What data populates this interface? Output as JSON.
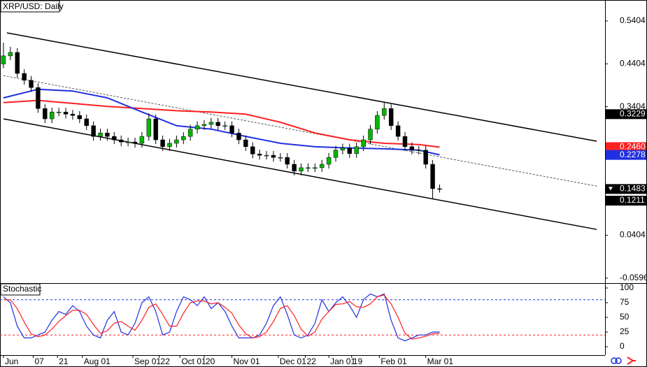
{
  "chart_data": [
    {
      "type": "candlestick",
      "title": "XRP/USD: Daily",
      "open": [
        0.44,
        0.459,
        0.467,
        0.418,
        0.402,
        0.385,
        0.336,
        0.312,
        0.328,
        0.328,
        0.323,
        0.32,
        0.312,
        0.296,
        0.271,
        0.279,
        0.271,
        0.263,
        0.258,
        0.258,
        0.255,
        0.271,
        0.312,
        0.263,
        0.247,
        0.255,
        0.263,
        0.271,
        0.288,
        0.296,
        0.299,
        0.304,
        0.296,
        0.296,
        0.279,
        0.263,
        0.247,
        0.23,
        0.227,
        0.227,
        0.222,
        0.222,
        0.206,
        0.19,
        0.198,
        0.198,
        0.198,
        0.206,
        0.222,
        0.239,
        0.244,
        0.231,
        0.247,
        0.263,
        0.288,
        0.32,
        0.336,
        0.296,
        0.271,
        0.247,
        0.239,
        0.239,
        0.206,
        0.149
      ],
      "high": [
        0.49,
        0.48,
        0.477,
        0.428,
        0.412,
        0.395,
        0.346,
        0.338,
        0.338,
        0.338,
        0.333,
        0.33,
        0.322,
        0.306,
        0.289,
        0.289,
        0.281,
        0.273,
        0.268,
        0.268,
        0.281,
        0.325,
        0.322,
        0.273,
        0.265,
        0.273,
        0.281,
        0.298,
        0.306,
        0.309,
        0.314,
        0.314,
        0.306,
        0.306,
        0.289,
        0.273,
        0.257,
        0.24,
        0.237,
        0.237,
        0.232,
        0.232,
        0.216,
        0.208,
        0.208,
        0.208,
        0.216,
        0.232,
        0.249,
        0.254,
        0.254,
        0.257,
        0.273,
        0.298,
        0.33,
        0.35,
        0.346,
        0.306,
        0.281,
        0.257,
        0.249,
        0.249,
        0.216,
        0.159
      ],
      "low": [
        0.43,
        0.449,
        0.408,
        0.392,
        0.375,
        0.326,
        0.302,
        0.302,
        0.318,
        0.313,
        0.31,
        0.302,
        0.286,
        0.261,
        0.261,
        0.261,
        0.253,
        0.248,
        0.248,
        0.245,
        0.245,
        0.261,
        0.253,
        0.237,
        0.237,
        0.245,
        0.253,
        0.261,
        0.278,
        0.286,
        0.289,
        0.286,
        0.286,
        0.269,
        0.253,
        0.237,
        0.22,
        0.217,
        0.217,
        0.212,
        0.212,
        0.196,
        0.18,
        0.18,
        0.188,
        0.188,
        0.188,
        0.196,
        0.212,
        0.229,
        0.221,
        0.221,
        0.237,
        0.253,
        0.278,
        0.31,
        0.286,
        0.261,
        0.237,
        0.229,
        0.229,
        0.196,
        0.125,
        0.14
      ],
      "close": [
        0.459,
        0.467,
        0.418,
        0.402,
        0.385,
        0.336,
        0.312,
        0.328,
        0.328,
        0.323,
        0.32,
        0.312,
        0.296,
        0.271,
        0.279,
        0.271,
        0.263,
        0.258,
        0.258,
        0.255,
        0.271,
        0.312,
        0.263,
        0.247,
        0.255,
        0.263,
        0.271,
        0.288,
        0.296,
        0.299,
        0.304,
        0.296,
        0.296,
        0.279,
        0.263,
        0.247,
        0.23,
        0.227,
        0.227,
        0.222,
        0.222,
        0.206,
        0.19,
        0.198,
        0.198,
        0.198,
        0.206,
        0.222,
        0.239,
        0.244,
        0.231,
        0.247,
        0.263,
        0.288,
        0.32,
        0.336,
        0.296,
        0.271,
        0.247,
        0.239,
        0.239,
        0.206,
        0.149,
        0.148
      ],
      "up_color": "#00b800",
      "down_color": "#000000",
      "moving_averages": [
        {
          "color": "#ff2020",
          "x": [
            0,
            5,
            10,
            15,
            20,
            25,
            30,
            35,
            40,
            45,
            50,
            55,
            60,
            63
          ],
          "values": [
            0.35,
            0.355,
            0.348,
            0.341,
            0.336,
            0.331,
            0.328,
            0.323,
            0.304,
            0.279,
            0.263,
            0.255,
            0.252,
            0.246
          ]
        },
        {
          "color": "#2030e0",
          "x": [
            0,
            5,
            10,
            15,
            20,
            25,
            30,
            35,
            40,
            45,
            50,
            55,
            60,
            63
          ],
          "values": [
            0.361,
            0.381,
            0.377,
            0.361,
            0.328,
            0.296,
            0.288,
            0.271,
            0.255,
            0.247,
            0.244,
            0.242,
            0.239,
            0.228
          ]
        }
      ],
      "lines": [
        {
          "x": [
            0.5,
            85.7
          ],
          "values": [
            0.5127,
            0.2598
          ],
          "color": "#000000",
          "dash": false
        },
        {
          "x": [
            0,
            85.7
          ],
          "values": [
            0.312,
            0.054
          ],
          "color": "#000000",
          "dash": false
        },
        {
          "x": [
            0,
            85.7
          ],
          "values": [
            0.413,
            0.155
          ],
          "color": "#555555",
          "dash": true
        }
      ],
      "price_markers": [
        {
          "value": 0.3229,
          "label": "0.3229",
          "color": "#000000",
          "arrow": false
        },
        {
          "value": 0.246,
          "label": "0.2460",
          "color": "#ff2020",
          "arrow": false
        },
        {
          "value": 0.2278,
          "label": "0.2278",
          "color": "#2030e0",
          "arrow": false
        },
        {
          "value": 0.1483,
          "label": "0.1483",
          "color": "#000000",
          "arrow": true
        },
        {
          "value": 0.1211,
          "label": "0.1211",
          "color": "#000000",
          "arrow": false
        }
      ],
      "xlim": [
        -0.5,
        86.9
      ],
      "ylim": [
        -0.0713,
        0.5893
      ],
      "yticks": [
        0.5404,
        0.4404,
        0.3404,
        0.0404,
        -0.0596
      ],
      "xticks": [
        {
          "value": 0,
          "label": "Jun"
        },
        {
          "value": 4.3,
          "label": "07"
        },
        {
          "value": 7.8,
          "label": "21"
        },
        {
          "value": 11.4,
          "label": "Aug 01"
        },
        {
          "value": 18.7,
          "label": "Sep 01"
        },
        {
          "value": 22.5,
          "label": "22"
        },
        {
          "value": 25.5,
          "label": "Oct 01"
        },
        {
          "value": 29,
          "label": "20"
        },
        {
          "value": 33,
          "label": "Nov 01"
        },
        {
          "value": 39.7,
          "label": "Dec 01"
        },
        {
          "value": 43.6,
          "label": "22"
        },
        {
          "value": 47,
          "label": "Jan 01"
        },
        {
          "value": 50.3,
          "label": "19"
        },
        {
          "value": 54.3,
          "label": "Feb 01"
        },
        {
          "value": 61,
          "label": "Mar 01"
        }
      ]
    },
    {
      "type": "line",
      "title": "Stochastic",
      "series": [
        {
          "color": "#2030e0",
          "values": [
            85,
            75,
            35,
            15,
            15,
            20,
            25,
            45,
            60,
            55,
            70,
            60,
            35,
            20,
            15,
            45,
            60,
            25,
            20,
            40,
            75,
            85,
            60,
            20,
            25,
            60,
            85,
            80,
            70,
            85,
            65,
            75,
            60,
            35,
            15,
            15,
            15,
            20,
            40,
            70,
            85,
            55,
            20,
            15,
            20,
            40,
            80,
            60,
            75,
            85,
            70,
            50,
            80,
            90,
            85,
            90,
            45,
            15,
            10,
            15,
            20,
            20,
            25,
            25
          ]
        },
        {
          "color": "#ff2020",
          "values": [
            80,
            80,
            65,
            42,
            22,
            17,
            20,
            30,
            43,
            53,
            62,
            62,
            55,
            38,
            23,
            27,
            40,
            43,
            35,
            28,
            45,
            67,
            73,
            55,
            35,
            35,
            57,
            75,
            78,
            78,
            73,
            75,
            67,
            57,
            37,
            22,
            15,
            17,
            25,
            43,
            65,
            70,
            53,
            30,
            18,
            25,
            47,
            60,
            72,
            73,
            77,
            68,
            67,
            73,
            85,
            88,
            73,
            50,
            23,
            13,
            15,
            18,
            22,
            23
          ]
        }
      ],
      "levels": [
        {
          "value": 80,
          "color": "#2030e0"
        },
        {
          "value": 20,
          "color": "#ff2020"
        }
      ],
      "xlim": [
        -0.5,
        86.9
      ],
      "ylim": [
        -10.7,
        108.3
      ],
      "yticks": [
        100,
        75,
        50,
        25,
        0
      ]
    }
  ]
}
